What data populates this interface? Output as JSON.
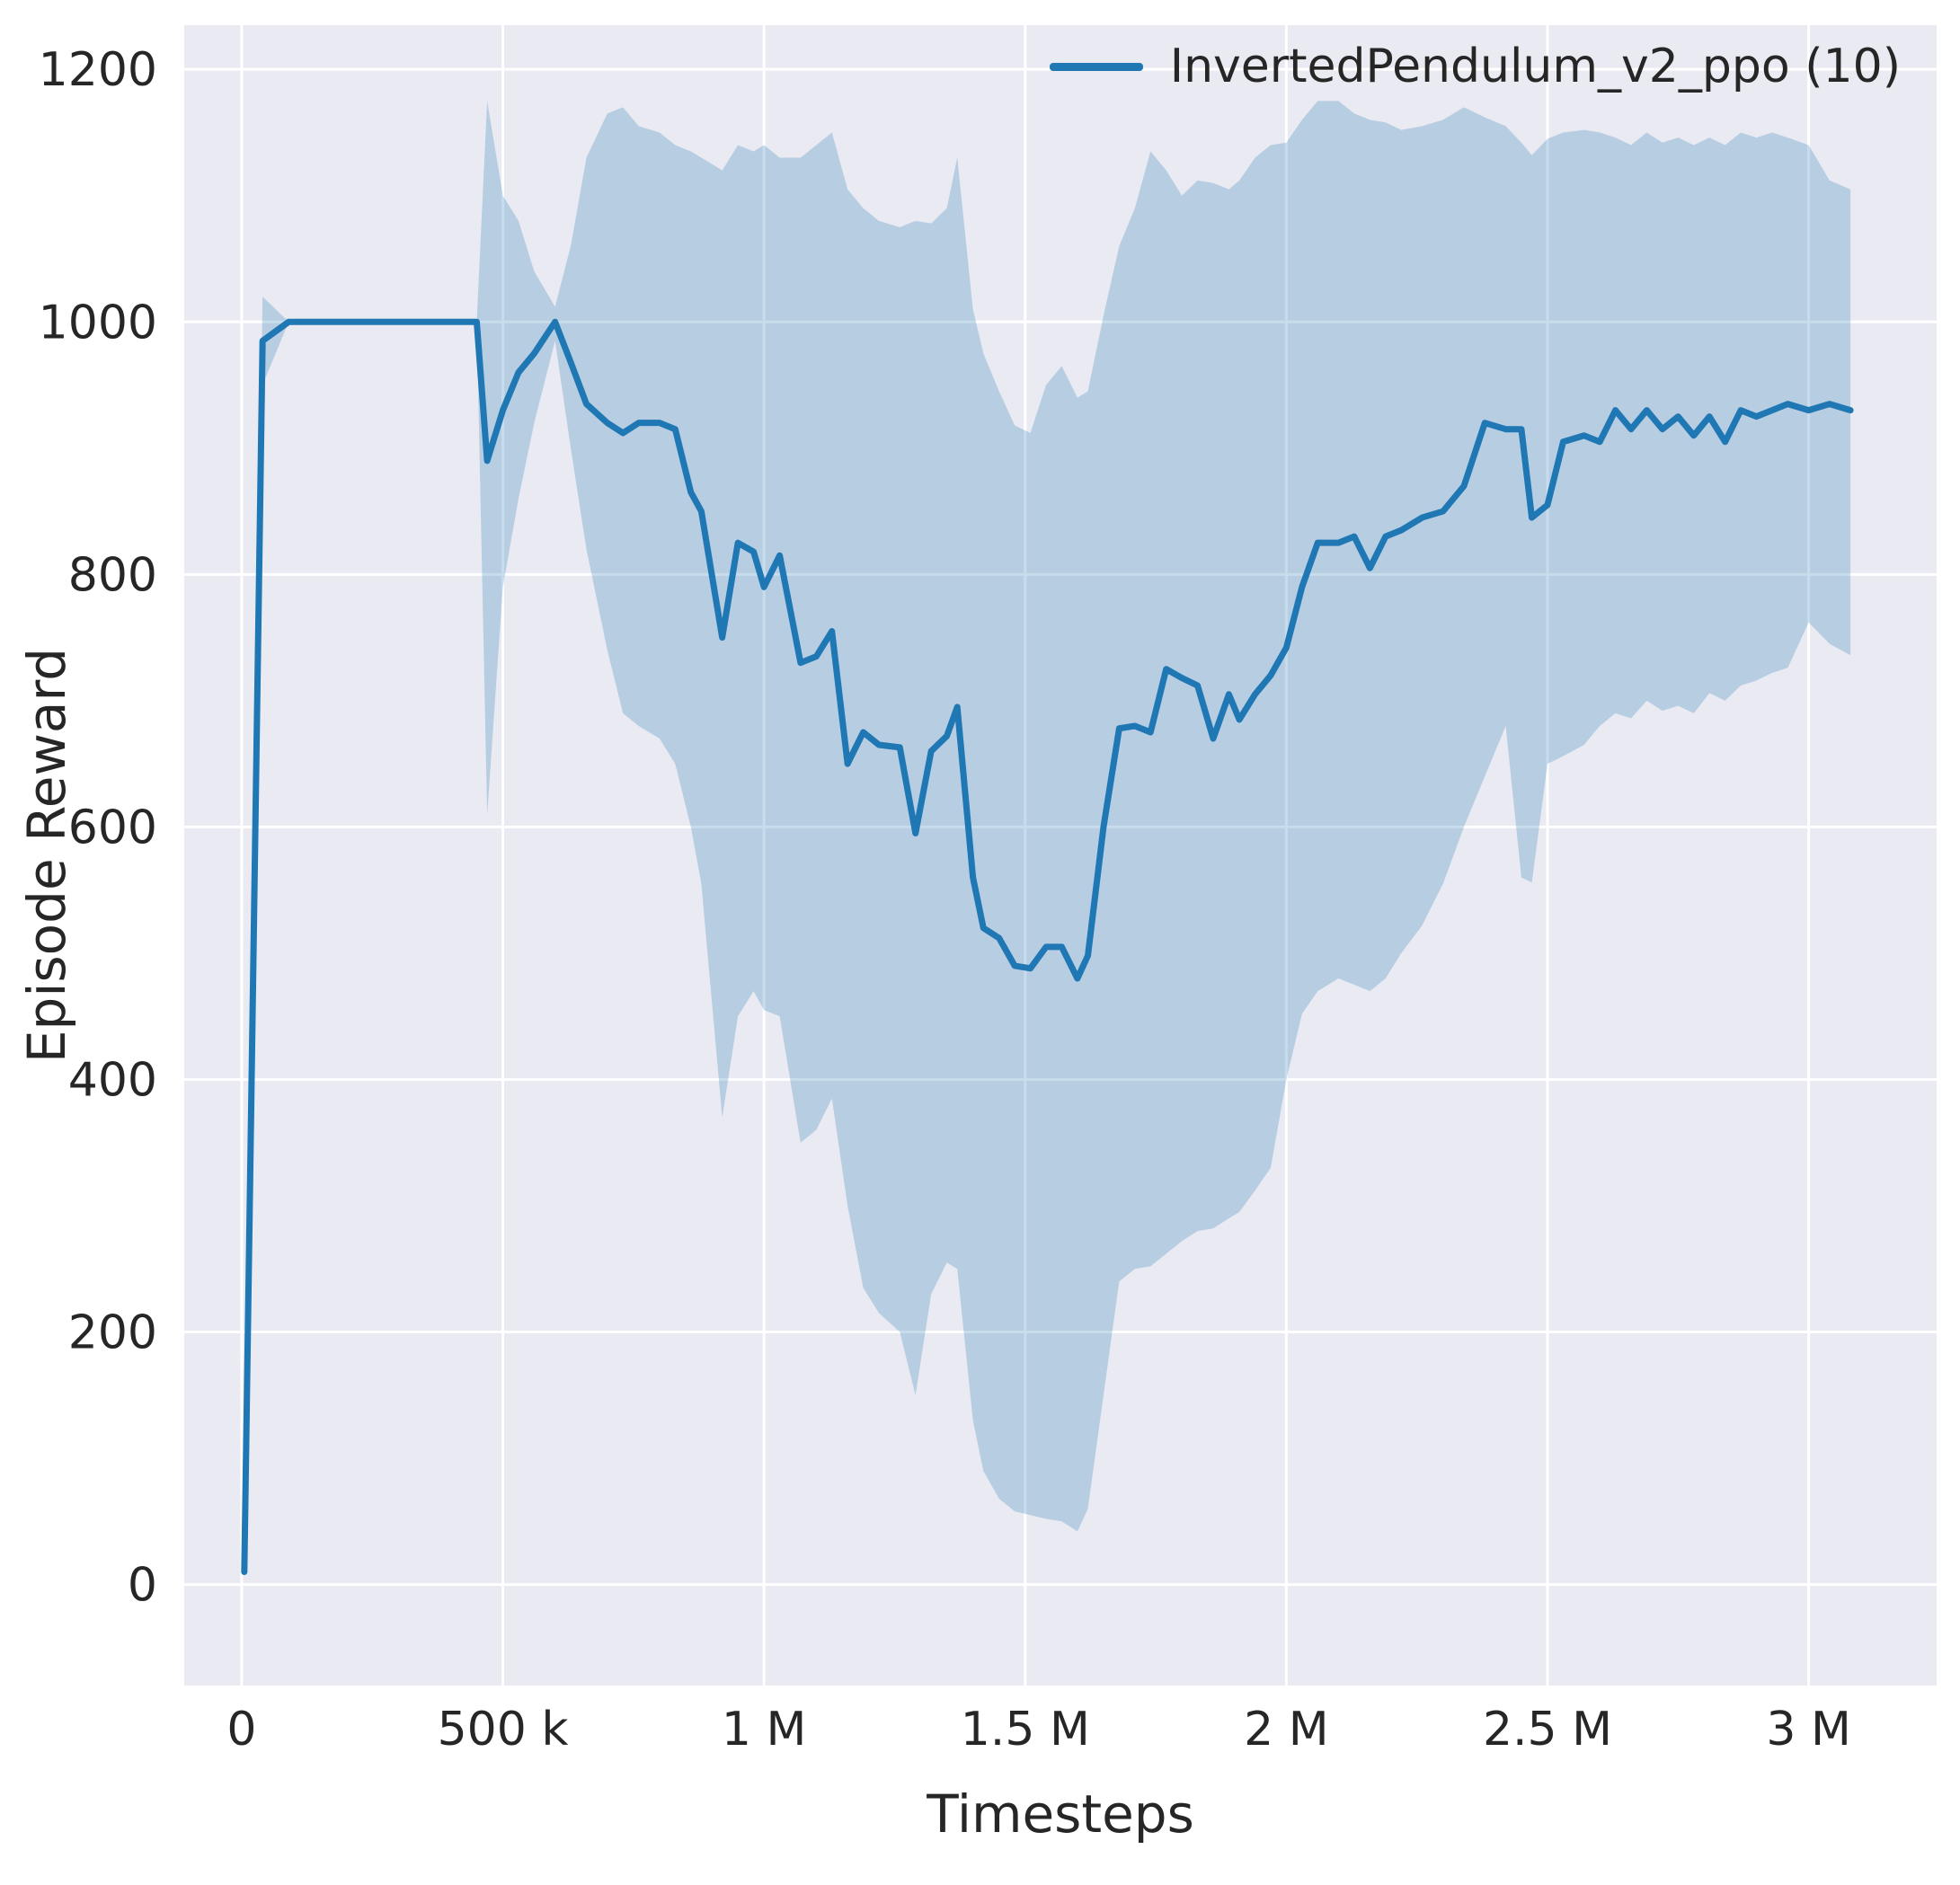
{
  "figure": {
    "background": "#ffffff",
    "axes_background": "#eaeaf2",
    "grid_color": "#ffffff",
    "text_color": "#262626",
    "accent_color": "#1f77b4"
  },
  "chart_data": {
    "type": "line",
    "title": "",
    "xlabel": "Timesteps",
    "ylabel": "Episode Reward",
    "grid": true,
    "legend_position": "upper right",
    "legend": [
      {
        "label": "InvertedPendulum_v2_ppo (10)",
        "color": "#1f77b4"
      }
    ],
    "xlim": [
      -110000,
      3245000
    ],
    "ylim": [
      -80,
      1235
    ],
    "x_ticks": [
      {
        "value": 0,
        "label": "0"
      },
      {
        "value": 500000,
        "label": "500 k"
      },
      {
        "value": 1000000,
        "label": "1 M"
      },
      {
        "value": 1500000,
        "label": "1.5 M"
      },
      {
        "value": 2000000,
        "label": "2 M"
      },
      {
        "value": 2500000,
        "label": "2.5 M"
      },
      {
        "value": 3000000,
        "label": "3 M"
      }
    ],
    "y_ticks": [
      {
        "value": 0,
        "label": "0"
      },
      {
        "value": 200,
        "label": "200"
      },
      {
        "value": 400,
        "label": "400"
      },
      {
        "value": 600,
        "label": "600"
      },
      {
        "value": 800,
        "label": "800"
      },
      {
        "value": 1000,
        "label": "1000"
      },
      {
        "value": 1200,
        "label": "1200"
      }
    ],
    "series": [
      {
        "name": "InvertedPendulum_v2_ppo (10)",
        "color": "#1f77b4",
        "band_opacity": 0.25,
        "x": [
          5000,
          40000,
          90000,
          450000,
          470000,
          500000,
          530000,
          560000,
          600000,
          630000,
          660000,
          700000,
          730000,
          760000,
          800000,
          830000,
          860000,
          880000,
          920000,
          950000,
          980000,
          1000000,
          1030000,
          1070000,
          1100000,
          1130000,
          1160000,
          1190000,
          1220000,
          1260000,
          1290000,
          1320000,
          1350000,
          1370000,
          1400000,
          1420000,
          1450000,
          1480000,
          1510000,
          1540000,
          1570000,
          1600000,
          1620000,
          1650000,
          1680000,
          1710000,
          1740000,
          1770000,
          1800000,
          1830000,
          1860000,
          1890000,
          1910000,
          1940000,
          1970000,
          2000000,
          2030000,
          2060000,
          2100000,
          2130000,
          2160000,
          2190000,
          2220000,
          2260000,
          2300000,
          2340000,
          2380000,
          2420000,
          2450000,
          2470000,
          2500000,
          2530000,
          2570000,
          2600000,
          2630000,
          2660000,
          2690000,
          2720000,
          2750000,
          2780000,
          2810000,
          2840000,
          2870000,
          2900000,
          2930000,
          2960000,
          3000000,
          3040000,
          3080000
        ],
        "mean": [
          10,
          985,
          1000,
          1000,
          890,
          930,
          960,
          975,
          1000,
          968,
          935,
          920,
          912,
          920,
          920,
          915,
          865,
          850,
          750,
          825,
          818,
          790,
          815,
          730,
          735,
          755,
          650,
          675,
          665,
          663,
          595,
          660,
          672,
          695,
          560,
          520,
          512,
          490,
          488,
          505,
          505,
          480,
          498,
          600,
          678,
          680,
          675,
          725,
          718,
          712,
          670,
          705,
          685,
          705,
          720,
          742,
          790,
          825,
          825,
          830,
          805,
          830,
          835,
          845,
          850,
          870,
          920,
          915,
          915,
          845,
          855,
          905,
          910,
          905,
          930,
          915,
          930,
          915,
          925,
          910,
          925,
          905,
          930,
          925,
          930,
          935,
          930,
          935,
          930
        ],
        "lower": [
          8,
          950,
          1000,
          1000,
          610,
          790,
          860,
          920,
          985,
          900,
          820,
          740,
          690,
          680,
          670,
          650,
          600,
          555,
          370,
          450,
          470,
          455,
          450,
          350,
          360,
          385,
          300,
          235,
          215,
          200,
          150,
          230,
          255,
          250,
          130,
          90,
          68,
          58,
          55,
          52,
          50,
          42,
          60,
          150,
          240,
          250,
          252,
          262,
          272,
          280,
          282,
          290,
          295,
          312,
          330,
          400,
          452,
          470,
          480,
          475,
          470,
          480,
          500,
          522,
          555,
          600,
          640,
          680,
          560,
          556,
          650,
          656,
          665,
          680,
          690,
          686,
          700,
          692,
          696,
          690,
          706,
          700,
          712,
          716,
          722,
          726,
          762,
          745,
          736
        ],
        "upper": [
          12,
          1020,
          1000,
          1000,
          1175,
          1100,
          1080,
          1040,
          1012,
          1060,
          1130,
          1165,
          1170,
          1155,
          1150,
          1140,
          1135,
          1130,
          1120,
          1140,
          1135,
          1140,
          1130,
          1130,
          1140,
          1150,
          1105,
          1090,
          1080,
          1075,
          1080,
          1078,
          1090,
          1130,
          1010,
          975,
          945,
          918,
          912,
          950,
          965,
          940,
          945,
          1005,
          1060,
          1090,
          1135,
          1120,
          1100,
          1112,
          1110,
          1105,
          1112,
          1130,
          1140,
          1142,
          1160,
          1175,
          1175,
          1165,
          1160,
          1158,
          1152,
          1155,
          1160,
          1170,
          1162,
          1155,
          1142,
          1132,
          1145,
          1150,
          1152,
          1150,
          1146,
          1140,
          1150,
          1142,
          1146,
          1140,
          1146,
          1140,
          1150,
          1146,
          1150,
          1146,
          1140,
          1112,
          1105
        ]
      }
    ]
  }
}
